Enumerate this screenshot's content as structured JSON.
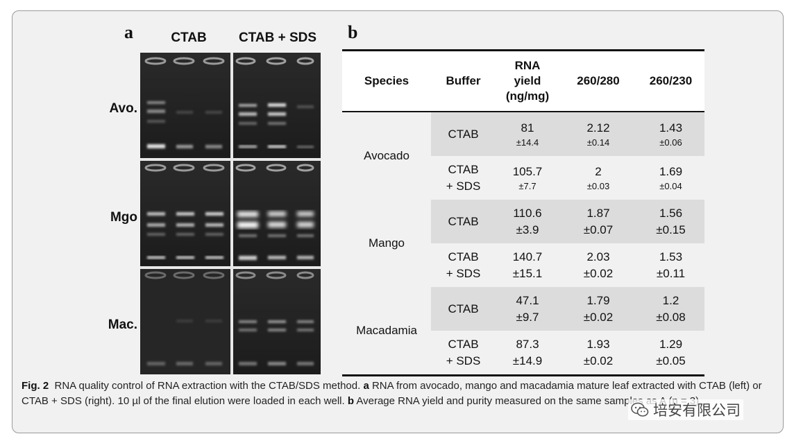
{
  "figure": {
    "panel_a_letter": "a",
    "panel_b_letter": "b",
    "gel": {
      "column_headers": [
        "CTAB",
        "CTAB + SDS"
      ],
      "row_labels": [
        "Avo.",
        "Mgo",
        "Mac."
      ]
    },
    "table": {
      "headers": [
        "Species",
        "Buffer",
        "RNA yield (ng/mg)",
        "260/280",
        "260/230"
      ],
      "header_yield_lines": [
        "RNA",
        "yield",
        "(ng/mg)"
      ],
      "species": [
        "Avocado",
        "Mango",
        "Macadamia"
      ],
      "rows": [
        {
          "buffer": [
            "CTAB"
          ],
          "yield": "81",
          "yield_sd": "±14.4",
          "r280": "2.12",
          "r280_sd": "±0.14",
          "r230": "1.43",
          "r230_sd": "±0.06"
        },
        {
          "buffer": [
            "CTAB",
            "+ SDS"
          ],
          "yield": "105.7",
          "yield_sd": "±7.7",
          "r280": "2",
          "r280_sd": "±0.03",
          "r230": "1.69",
          "r230_sd": "±0.04"
        },
        {
          "buffer": [
            "CTAB"
          ],
          "yield": "110.6",
          "yield_sd": "±3.9",
          "r280": "1.87",
          "r280_sd": "±0.07",
          "r230": "1.56",
          "r230_sd": "±0.15"
        },
        {
          "buffer": [
            "CTAB",
            "+ SDS"
          ],
          "yield": "140.7",
          "yield_sd": "±15.1",
          "r280": "2.03",
          "r280_sd": "±0.02",
          "r230": "1.53",
          "r230_sd": "±0.11"
        },
        {
          "buffer": [
            "CTAB"
          ],
          "yield": "47.1",
          "yield_sd": "±9.7",
          "r280": "1.79",
          "r280_sd": "±0.02",
          "r230": "1.2",
          "r230_sd": "±0.08"
        },
        {
          "buffer": [
            "CTAB",
            "+ SDS"
          ],
          "yield": "87.3",
          "yield_sd": "±14.9",
          "r280": "1.93",
          "r280_sd": "±0.02",
          "r230": "1.29",
          "r230_sd": "±0.05"
        }
      ]
    },
    "caption": {
      "label": "Fig. 2",
      "text_1": "RNA quality control of RNA extraction with the CTAB/SDS method. ",
      "a": "a",
      "text_2": " RNA from avocado, mango and macadamia mature leaf extracted with CTAB (left) or CTAB + SDS (right). 10 µl of the final elution were loaded in each well. ",
      "b": "b",
      "text_3": " Average RNA yield and purity measured on the same samples as A (n = 3)"
    },
    "watermark": "培安有限公司"
  }
}
